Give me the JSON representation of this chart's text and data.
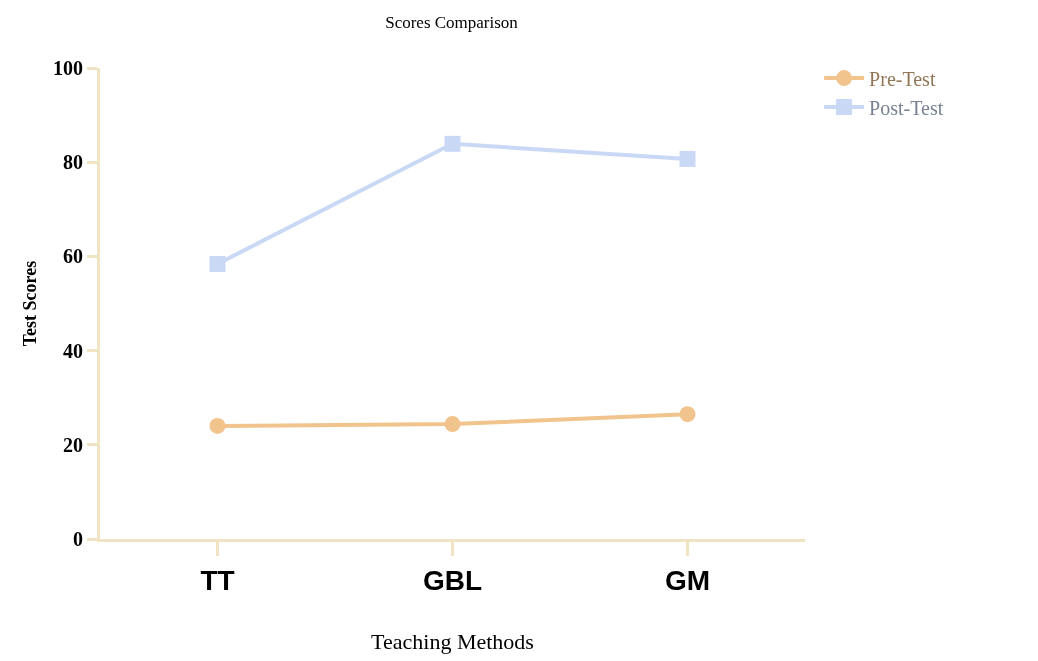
{
  "chart_data": {
    "type": "line",
    "title": "Scores Comparison",
    "xlabel": "Teaching Methods",
    "ylabel": "Test Scores",
    "categories": [
      "TT",
      "GBL",
      "GM"
    ],
    "series": [
      {
        "name": "Pre-Test",
        "color": "#f2c48d",
        "marker": "circle",
        "values": [
          24.0,
          24.4,
          26.5
        ]
      },
      {
        "name": "Post-Test",
        "color": "#c9d9f5",
        "marker": "square",
        "values": [
          58.4,
          83.9,
          80.7
        ]
      }
    ],
    "ylim": [
      0,
      100
    ],
    "yticks": [
      0,
      20,
      40,
      60,
      80,
      100
    ],
    "grid": false,
    "legend": "top right",
    "line_style": "solid"
  }
}
